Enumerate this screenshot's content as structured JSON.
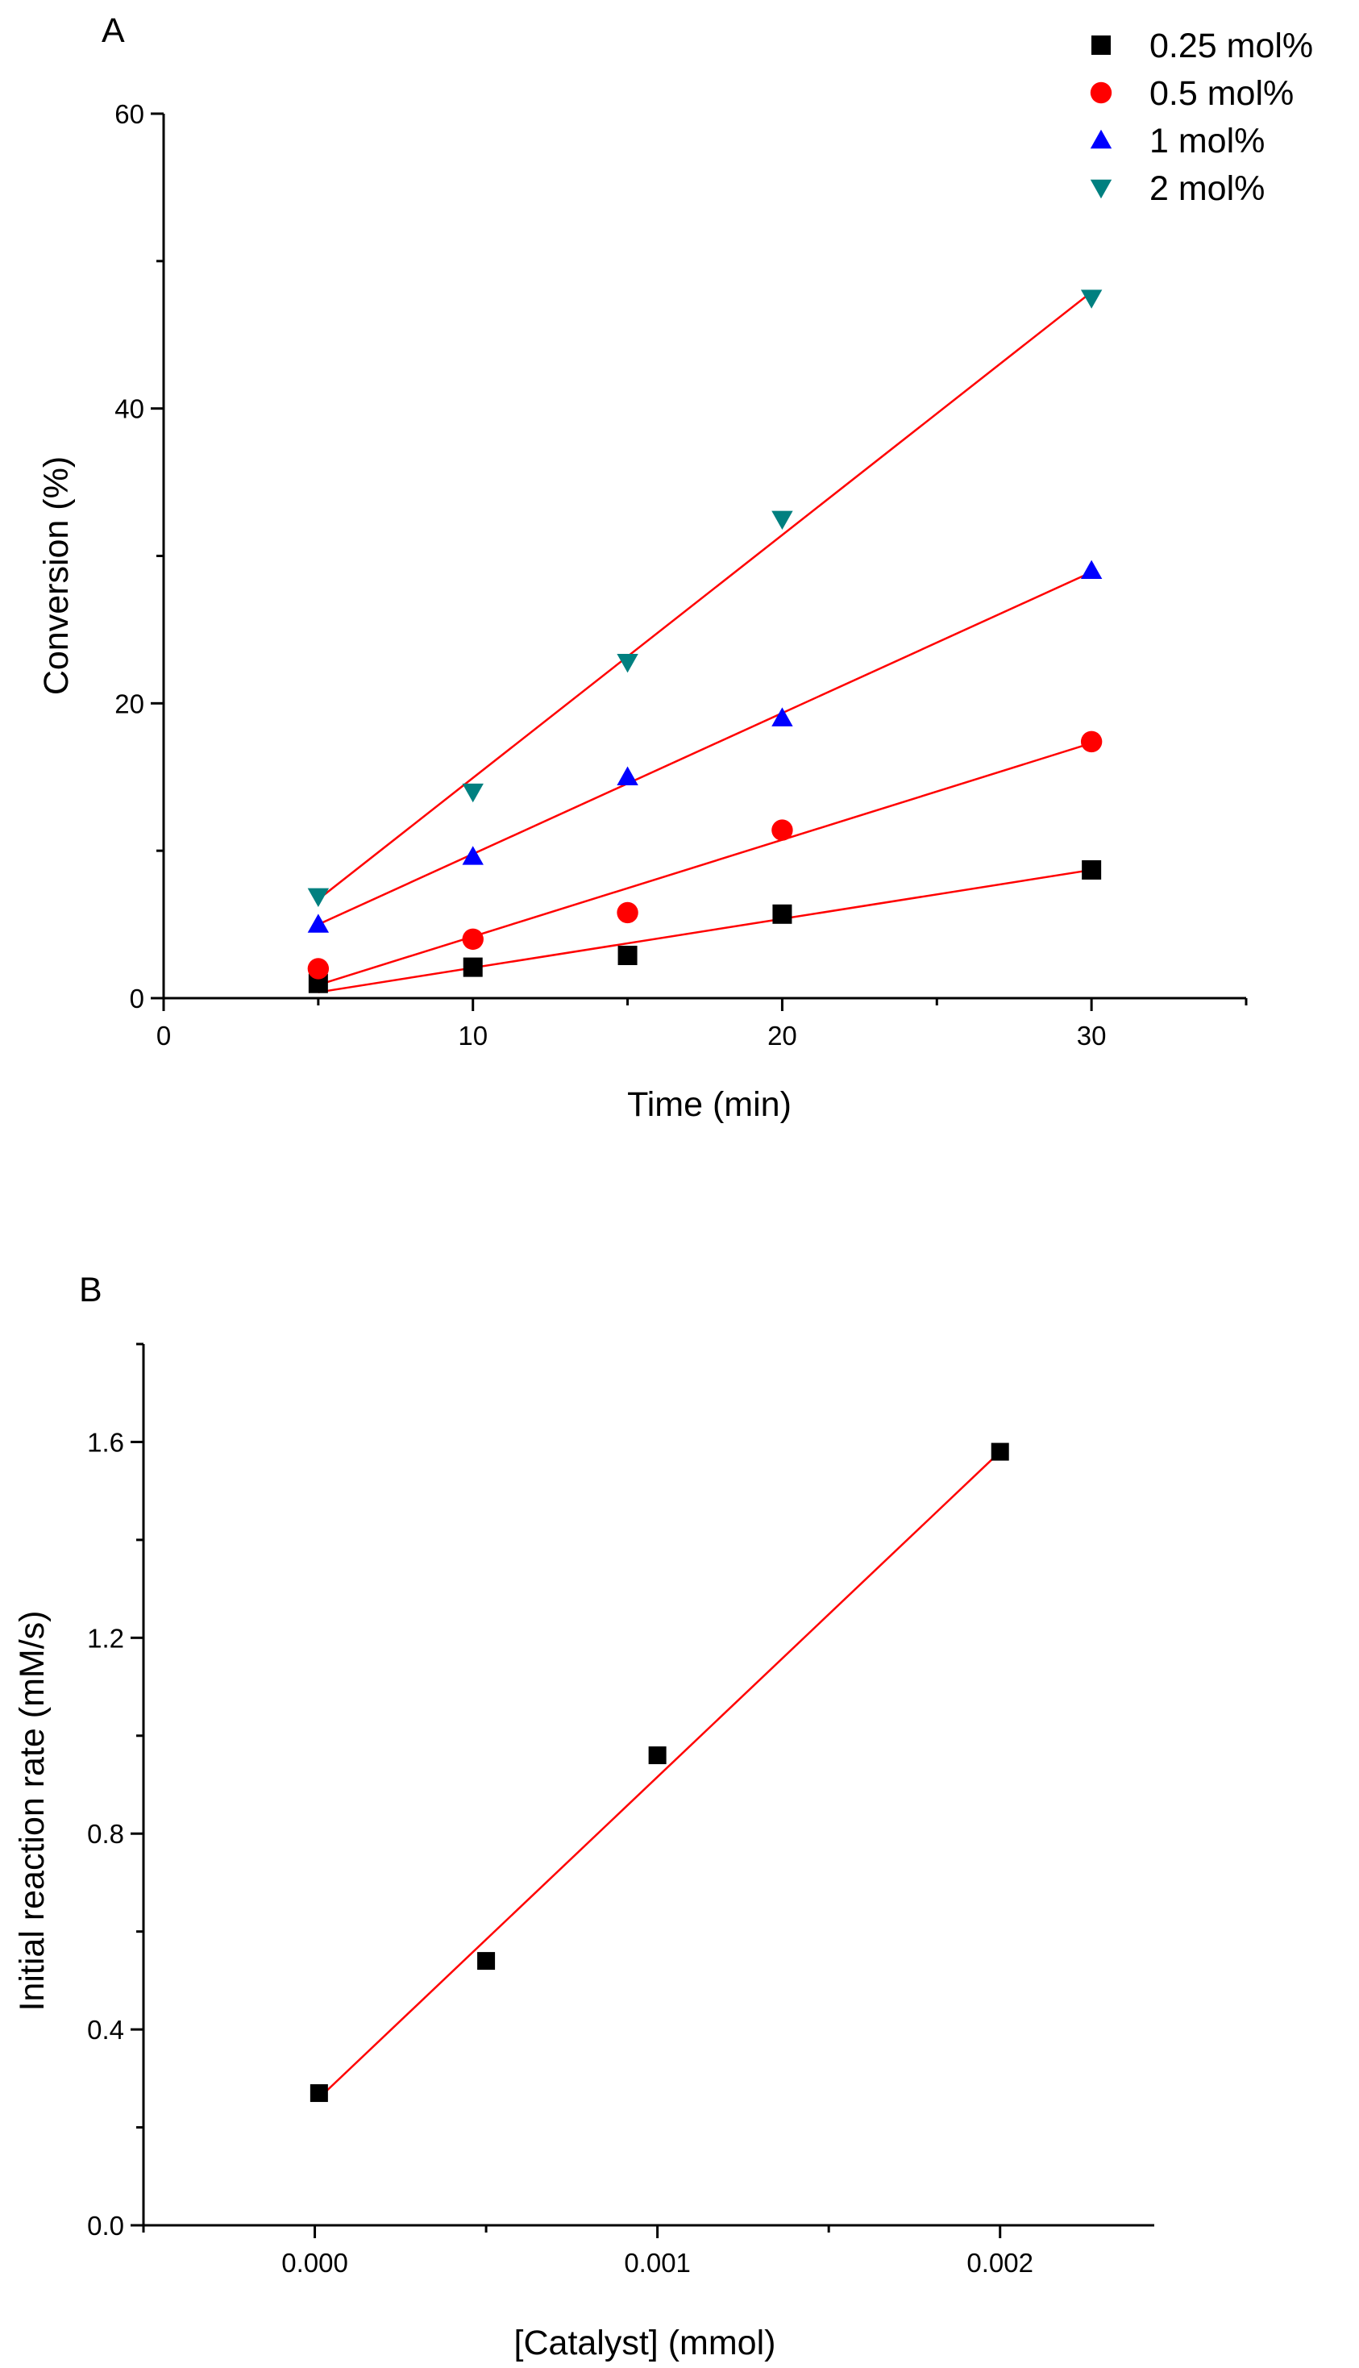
{
  "chart_data": [
    {
      "panel_label": "A",
      "type": "scatter",
      "xlabel": "Time (min)",
      "ylabel": "Conversion (%)",
      "xlim": [
        0,
        35
      ],
      "ylim": [
        0,
        60
      ],
      "x_ticks": [
        0,
        10,
        20,
        30
      ],
      "y_ticks": [
        0,
        20,
        40,
        60
      ],
      "x_minor_ticks": [
        5,
        15,
        25,
        35
      ],
      "y_minor_ticks": [
        10,
        30,
        50
      ],
      "legend_position": "top-right",
      "grid": false,
      "fit_color": "#ff0000",
      "series": [
        {
          "name": "0.25 mol%",
          "marker": "square",
          "color": "#000000",
          "points": [
            [
              5,
              1.0
            ],
            [
              10,
              2.1
            ],
            [
              15,
              2.9
            ],
            [
              20,
              5.7
            ],
            [
              30,
              8.7
            ]
          ],
          "fit": [
            [
              5,
              0.4
            ],
            [
              30,
              8.7
            ]
          ]
        },
        {
          "name": "0.5 mol%",
          "marker": "circle",
          "color": "#ff0000",
          "points": [
            [
              5,
              2.0
            ],
            [
              10,
              4.0
            ],
            [
              15,
              5.8
            ],
            [
              20,
              11.4
            ],
            [
              30,
              17.4
            ]
          ],
          "fit": [
            [
              5,
              0.9
            ],
            [
              30,
              17.3
            ]
          ]
        },
        {
          "name": "1 mol%",
          "marker": "triangle-up",
          "color": "#0000ff",
          "points": [
            [
              5,
              5.0
            ],
            [
              10,
              9.6
            ],
            [
              15,
              15.0
            ],
            [
              20,
              19.0
            ],
            [
              30,
              29.0
            ]
          ],
          "fit": [
            [
              5,
              5.0
            ],
            [
              30,
              28.9
            ]
          ]
        },
        {
          "name": "2 mol%",
          "marker": "triangle-down",
          "color": "#008080",
          "points": [
            [
              5,
              6.9
            ],
            [
              10,
              14.0
            ],
            [
              15,
              22.8
            ],
            [
              20,
              32.5
            ],
            [
              30,
              47.5
            ]
          ],
          "fit": [
            [
              5,
              6.7
            ],
            [
              30,
              47.9
            ]
          ]
        }
      ]
    },
    {
      "panel_label": "B",
      "type": "scatter",
      "xlabel": "[Catalyst] (mmol)",
      "ylabel": "Initial reaction rate (mM/s)",
      "xlim": [
        -0.0005,
        0.00245
      ],
      "ylim": [
        0,
        1.8
      ],
      "x_ticks": [
        0.0,
        0.001,
        0.002
      ],
      "x_tick_labels": [
        "0.000",
        "0.001",
        "0.002"
      ],
      "x_minor_ticks": [
        -0.0005,
        0.0005,
        0.0015
      ],
      "y_ticks": [
        0.0,
        0.4,
        0.8,
        1.2,
        1.6
      ],
      "y_tick_labels": [
        "0.0",
        "0.4",
        "0.8",
        "1.2",
        "1.6"
      ],
      "y_minor_ticks": [
        0.2,
        0.6,
        1.0,
        1.4,
        1.8
      ],
      "grid": false,
      "fit_color": "#ff0000",
      "series": [
        {
          "marker": "square",
          "color": "#000000",
          "points": [
            [
              1.25e-05,
              0.27
            ],
            [
              0.0005,
              0.54
            ],
            [
              0.001,
              0.96
            ],
            [
              0.002,
              1.58
            ]
          ],
          "fit": [
            [
              1.25e-05,
              0.26
            ],
            [
              0.002,
              1.58
            ]
          ]
        }
      ]
    }
  ]
}
